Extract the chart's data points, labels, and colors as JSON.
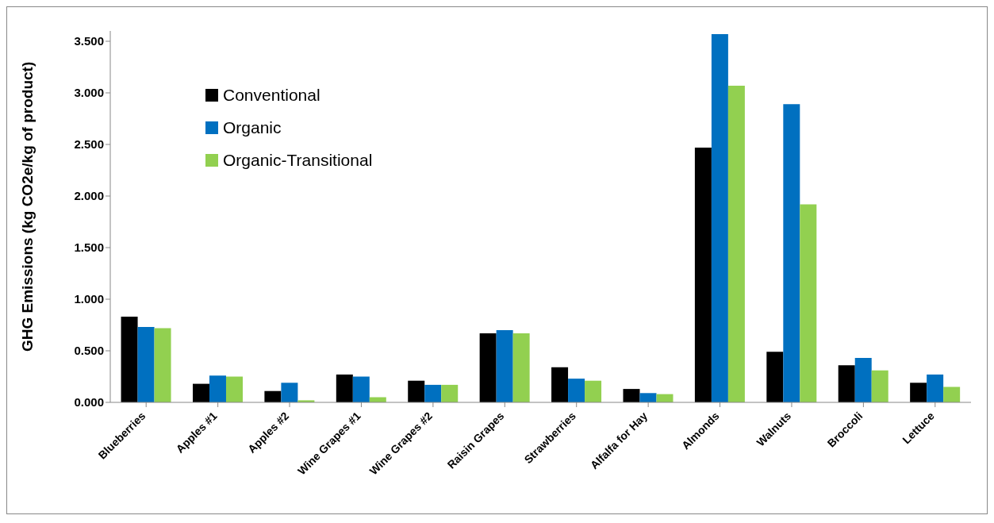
{
  "chart_data": {
    "type": "bar",
    "ylabel": "GHG Emissions (kg CO2e/kg of product)",
    "categories": [
      "Blueberries",
      "Apples #1",
      "Apples #2",
      "Wine Grapes #1",
      "Wine Grapes #2",
      "Raisin Grapes",
      "Strawberries",
      "Alfalfa for Hay",
      "Almonds",
      "Walnuts",
      "Broccoli",
      "Lettuce"
    ],
    "series": [
      {
        "name": "Conventional",
        "color": "#000000",
        "values": [
          0.83,
          0.18,
          0.11,
          0.27,
          0.21,
          0.67,
          0.34,
          0.13,
          2.47,
          0.49,
          0.36,
          0.19
        ]
      },
      {
        "name": "Organic",
        "color": "#0070c0",
        "values": [
          0.73,
          0.26,
          0.19,
          0.25,
          0.17,
          0.7,
          0.23,
          0.09,
          3.57,
          2.89,
          0.43,
          0.27
        ]
      },
      {
        "name": "Organic-Transitional",
        "color": "#92d050",
        "values": [
          0.72,
          0.25,
          0.02,
          0.05,
          0.17,
          0.67,
          0.21,
          0.08,
          3.07,
          1.92,
          0.31,
          0.15
        ]
      }
    ],
    "ylim": [
      0,
      3.6
    ],
    "yticks": [
      {
        "value": 0,
        "label": "0.000"
      },
      {
        "value": 0.5,
        "label": "0.500"
      },
      {
        "value": 1,
        "label": "1.000"
      },
      {
        "value": 1.5,
        "label": "1.500"
      },
      {
        "value": 2,
        "label": "2.000"
      },
      {
        "value": 2.5,
        "label": "2.500"
      },
      {
        "value": 3,
        "label": "3.000"
      },
      {
        "value": 3.5,
        "label": "3.500"
      }
    ],
    "grid": false,
    "legend": "top left"
  }
}
